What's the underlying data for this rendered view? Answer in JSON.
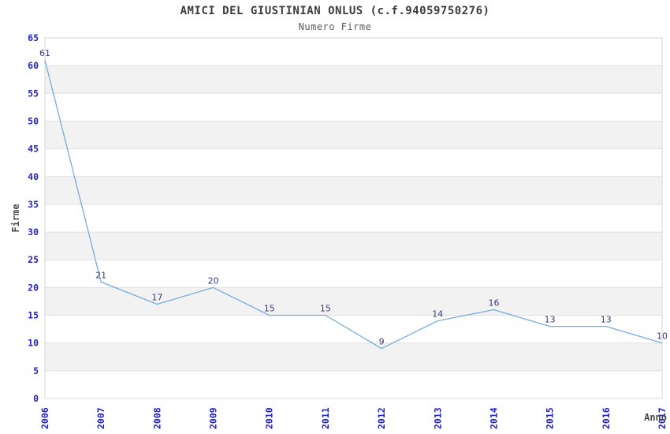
{
  "chart_data": {
    "type": "line",
    "title": "AMICI DEL GIUSTINIAN ONLUS (c.f.94059750276)",
    "subtitle": "Numero Firme",
    "xlabel": "Anno",
    "ylabel": "Firme",
    "categories": [
      "2006",
      "2007",
      "2008",
      "2009",
      "2010",
      "2011",
      "2012",
      "2013",
      "2014",
      "2015",
      "2016",
      "2017"
    ],
    "values": [
      61,
      21,
      17,
      20,
      15,
      15,
      9,
      14,
      16,
      13,
      13,
      10
    ],
    "ylim": [
      0,
      65
    ],
    "ytick_step": 5,
    "yticks": [
      0,
      5,
      10,
      15,
      20,
      25,
      30,
      35,
      40,
      45,
      50,
      55,
      60,
      65
    ],
    "legend": "none",
    "grid": "horizontal-bands",
    "colors": {
      "line": "#76abde",
      "tick_label": "#2222cc",
      "data_label": "#3a3a80",
      "band": "#f2f2f2",
      "gridline": "#e0e0e0",
      "plot_border": "#d5d5d5",
      "axis_label": "#4a4a4a",
      "background": "#ffffff"
    }
  }
}
